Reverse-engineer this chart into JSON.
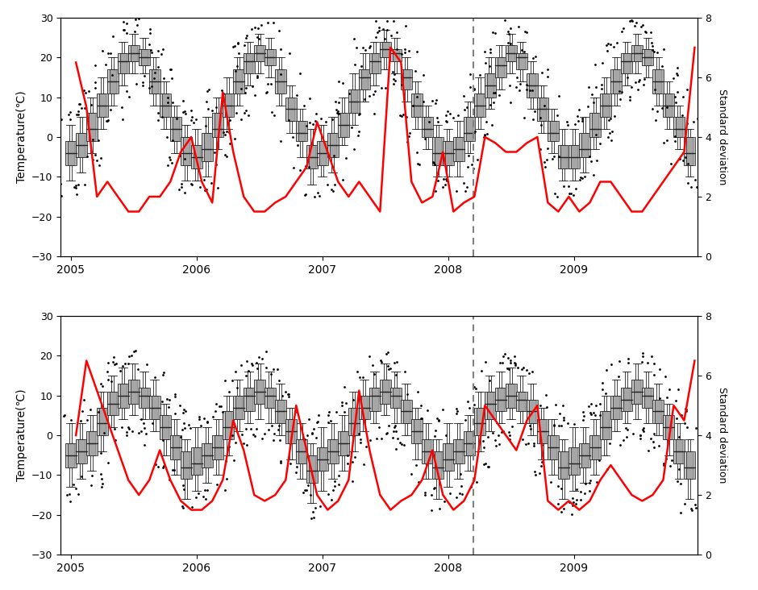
{
  "ylabel": "Temperature(℃)",
  "ylabel2": "Standard deviation",
  "ylim": [
    -30,
    30
  ],
  "ylim2": [
    0,
    8
  ],
  "dotted_line_x": 2008.2,
  "x_ticks": [
    2005,
    2006,
    2007,
    2008,
    2009
  ],
  "panel1_monthly_medians": [
    -4,
    -2,
    2,
    8,
    14,
    19,
    21,
    20,
    14,
    8,
    2,
    -4,
    -5,
    -3,
    2,
    8,
    14,
    19,
    21,
    20,
    14,
    7,
    1,
    -5,
    -4,
    -2,
    3,
    9,
    15,
    19,
    22,
    21,
    15,
    8,
    2,
    -4,
    -4,
    -3,
    1,
    8,
    13,
    18,
    21,
    20,
    13,
    7,
    1,
    -5,
    -5,
    -3,
    2,
    8,
    14,
    19,
    21,
    20,
    14,
    8,
    2,
    -4
  ],
  "panel1_monthly_q1": [
    -7,
    -5,
    -1,
    5,
    11,
    16,
    19,
    18,
    11,
    5,
    -1,
    -7,
    -8,
    -6,
    0,
    5,
    11,
    16,
    19,
    18,
    11,
    4,
    -1,
    -8,
    -7,
    -5,
    0,
    6,
    12,
    16,
    20,
    19,
    12,
    5,
    0,
    -7,
    -7,
    -6,
    -1,
    5,
    10,
    15,
    19,
    17,
    10,
    4,
    -1,
    -8,
    -8,
    -5,
    0,
    5,
    11,
    16,
    19,
    18,
    11,
    5,
    0,
    -7
  ],
  "panel1_monthly_q3": [
    -1,
    1,
    6,
    11,
    17,
    21,
    23,
    22,
    17,
    11,
    5,
    0,
    -2,
    1,
    6,
    11,
    17,
    21,
    23,
    22,
    17,
    10,
    4,
    -2,
    -1,
    1,
    6,
    12,
    17,
    21,
    24,
    22,
    17,
    11,
    5,
    0,
    -1,
    0,
    5,
    11,
    16,
    20,
    23,
    21,
    16,
    10,
    4,
    -2,
    -2,
    1,
    6,
    11,
    17,
    21,
    23,
    22,
    17,
    11,
    5,
    0
  ],
  "panel1_monthly_whislo": [
    -11,
    -9,
    -4,
    2,
    8,
    13,
    16,
    16,
    8,
    2,
    -4,
    -11,
    -11,
    -10,
    -3,
    2,
    8,
    13,
    16,
    15,
    8,
    1,
    -5,
    -12,
    -10,
    -9,
    -2,
    3,
    9,
    13,
    17,
    16,
    9,
    2,
    -3,
    -10,
    -10,
    -10,
    -4,
    2,
    7,
    12,
    16,
    14,
    7,
    1,
    -4,
    -11,
    -11,
    -9,
    -3,
    2,
    8,
    13,
    16,
    15,
    8,
    2,
    -3,
    -10
  ],
  "panel1_monthly_whishi": [
    3,
    5,
    10,
    15,
    20,
    24,
    26,
    25,
    20,
    14,
    8,
    3,
    2,
    5,
    10,
    15,
    20,
    24,
    26,
    25,
    20,
    13,
    7,
    2,
    3,
    5,
    10,
    16,
    21,
    24,
    27,
    25,
    20,
    14,
    8,
    3,
    2,
    4,
    9,
    15,
    20,
    23,
    26,
    24,
    19,
    13,
    7,
    2,
    2,
    5,
    10,
    15,
    20,
    24,
    26,
    25,
    20,
    14,
    8,
    2
  ],
  "panel1_std": [
    6.5,
    5.0,
    2.0,
    2.5,
    2.0,
    1.5,
    1.5,
    2.0,
    2.0,
    2.5,
    3.5,
    4.0,
    2.5,
    1.8,
    5.5,
    3.5,
    2.0,
    1.5,
    1.5,
    1.8,
    2.0,
    2.5,
    3.0,
    4.5,
    3.5,
    2.5,
    2.0,
    2.5,
    2.0,
    1.5,
    7.0,
    6.5,
    2.5,
    1.8,
    2.0,
    3.5,
    1.5,
    1.8,
    2.0,
    4.0,
    3.8,
    3.5,
    3.5,
    3.8,
    4.0,
    1.8,
    1.5,
    2.0,
    1.5,
    1.8,
    2.5,
    2.5,
    2.0,
    1.5,
    1.5,
    2.0,
    2.5,
    3.0,
    3.5,
    7.0
  ],
  "panel2_monthly_medians": [
    -5,
    -4,
    -2,
    3,
    8,
    10,
    11,
    10,
    7,
    2,
    -3,
    -8,
    -7,
    -5,
    -3,
    2,
    7,
    10,
    11,
    10,
    6,
    1,
    -4,
    -9,
    -6,
    -4,
    -2,
    3,
    7,
    10,
    11,
    10,
    6,
    1,
    -4,
    -8,
    -6,
    -4,
    -2,
    3,
    8,
    9,
    10,
    9,
    6,
    1,
    -3,
    -8,
    -7,
    -5,
    -3,
    2,
    7,
    9,
    11,
    10,
    6,
    2,
    -4,
    -8
  ],
  "panel2_monthly_q1": [
    -8,
    -7,
    -5,
    0,
    5,
    7,
    8,
    7,
    4,
    -1,
    -6,
    -11,
    -10,
    -8,
    -6,
    -1,
    4,
    6,
    8,
    7,
    3,
    -2,
    -7,
    -12,
    -9,
    -7,
    -5,
    0,
    4,
    6,
    8,
    7,
    3,
    -2,
    -7,
    -11,
    -9,
    -7,
    -5,
    0,
    4,
    6,
    7,
    6,
    3,
    -2,
    -6,
    -11,
    -10,
    -8,
    -6,
    -1,
    4,
    6,
    8,
    7,
    3,
    -1,
    -7,
    -11
  ],
  "panel2_monthly_q3": [
    -2,
    -1,
    1,
    7,
    11,
    13,
    14,
    12,
    10,
    5,
    0,
    -4,
    -3,
    -2,
    0,
    6,
    10,
    12,
    14,
    12,
    9,
    4,
    -1,
    -5,
    -3,
    -1,
    1,
    7,
    10,
    12,
    14,
    12,
    9,
    4,
    -1,
    -4,
    -2,
    -1,
    1,
    7,
    11,
    12,
    13,
    11,
    9,
    4,
    0,
    -4,
    -3,
    -2,
    0,
    6,
    10,
    12,
    14,
    12,
    9,
    5,
    -1,
    -4
  ],
  "panel2_monthly_whislo": [
    -13,
    -11,
    -9,
    -4,
    2,
    4,
    5,
    4,
    1,
    -5,
    -10,
    -16,
    -14,
    -12,
    -10,
    -5,
    1,
    3,
    4,
    3,
    0,
    -6,
    -11,
    -17,
    -14,
    -11,
    -9,
    -4,
    1,
    3,
    5,
    3,
    0,
    -6,
    -11,
    -16,
    -13,
    -11,
    -9,
    -4,
    1,
    3,
    4,
    3,
    0,
    -6,
    -10,
    -16,
    -14,
    -12,
    -10,
    -5,
    1,
    3,
    4,
    3,
    0,
    -5,
    -11,
    -16
  ],
  "panel2_monthly_whishi": [
    3,
    3,
    5,
    11,
    15,
    17,
    18,
    16,
    14,
    8,
    4,
    -1,
    2,
    2,
    4,
    10,
    14,
    16,
    18,
    16,
    13,
    7,
    3,
    -2,
    2,
    3,
    5,
    11,
    14,
    16,
    18,
    16,
    13,
    7,
    3,
    -1,
    3,
    3,
    5,
    11,
    15,
    16,
    17,
    15,
    13,
    7,
    4,
    -1,
    2,
    2,
    4,
    10,
    14,
    16,
    18,
    16,
    13,
    8,
    3,
    -1
  ],
  "panel2_std": [
    4.0,
    6.5,
    5.5,
    4.5,
    3.5,
    2.5,
    2.0,
    2.5,
    3.5,
    2.5,
    1.8,
    1.5,
    1.5,
    1.8,
    2.5,
    4.5,
    3.5,
    2.0,
    1.8,
    2.0,
    2.5,
    5.0,
    3.5,
    2.0,
    1.5,
    1.8,
    2.5,
    5.5,
    3.5,
    2.0,
    1.5,
    1.8,
    2.0,
    2.5,
    3.5,
    2.0,
    1.5,
    1.8,
    2.5,
    5.0,
    4.5,
    4.0,
    3.5,
    4.5,
    5.0,
    1.8,
    1.5,
    1.8,
    1.5,
    1.8,
    2.5,
    3.0,
    2.5,
    2.0,
    1.8,
    2.0,
    2.5,
    5.0,
    4.5,
    6.5
  ],
  "box_width": 0.07,
  "box_facecolor_light": "#c8c8c8",
  "box_facecolor_dark": "#a0a0a0",
  "box_edgecolor": "#222222",
  "line_color": "#ff0000",
  "outlier_color": "black",
  "outlier_size": 2.0,
  "background_color": "#ffffff"
}
